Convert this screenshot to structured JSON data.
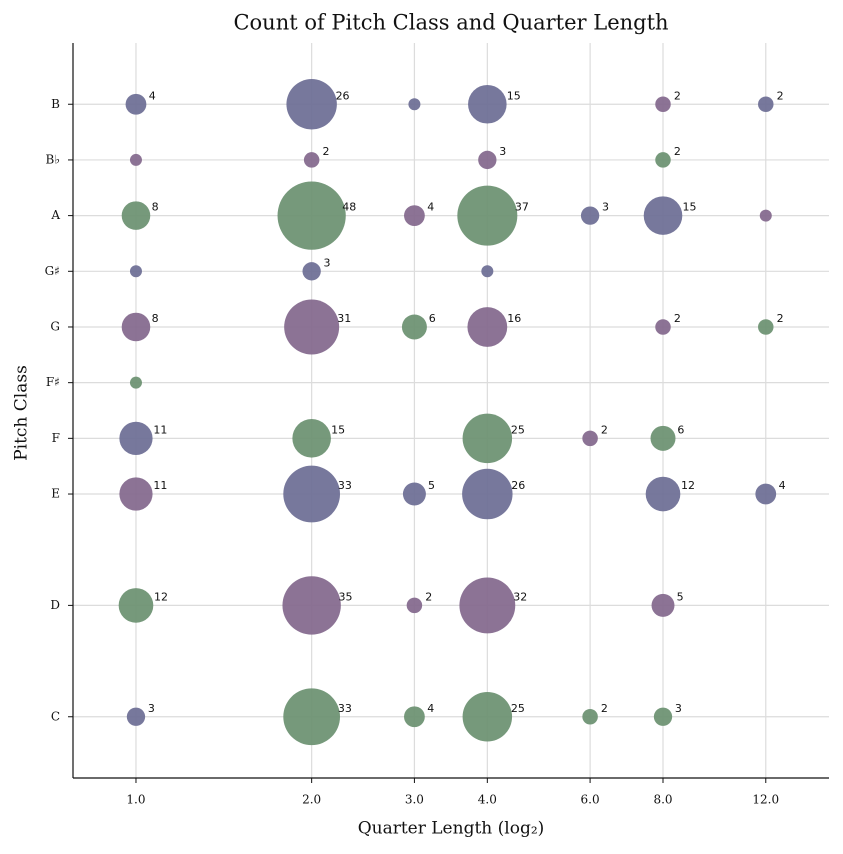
{
  "chart_data": {
    "type": "scatter",
    "title": "Count of Pitch Class and Quarter Length",
    "xlabel": "Quarter Length (log₂)",
    "ylabel": "Pitch Class",
    "log_x": true,
    "grid": true,
    "xlim": [
      0.78,
      15.4
    ],
    "ylim": [
      -1.1,
      12.1
    ],
    "xticks": [
      {
        "value": 1,
        "label": "1.0"
      },
      {
        "value": 2,
        "label": "2.0"
      },
      {
        "value": 3,
        "label": "3.0"
      },
      {
        "value": 4,
        "label": "4.0"
      },
      {
        "value": 6,
        "label": "6.0"
      },
      {
        "value": 8,
        "label": "8.0"
      },
      {
        "value": 12,
        "label": "12.0"
      }
    ],
    "yticks": [
      {
        "value": 0,
        "label": "C"
      },
      {
        "value": 2,
        "label": "D"
      },
      {
        "value": 4,
        "label": "E"
      },
      {
        "value": 5,
        "label": "F"
      },
      {
        "value": 6,
        "label": "F♯"
      },
      {
        "value": 7,
        "label": "G"
      },
      {
        "value": 8,
        "label": "G♯"
      },
      {
        "value": 9,
        "label": "A"
      },
      {
        "value": 10,
        "label": "B♭"
      },
      {
        "value": 11,
        "label": "B"
      }
    ],
    "x": [
      1,
      2,
      3,
      4,
      8,
      12,
      1,
      2,
      4,
      8,
      1,
      2,
      3,
      4,
      6,
      8,
      12,
      1,
      2,
      4,
      1,
      2,
      3,
      4,
      8,
      12,
      1,
      1,
      2,
      4,
      6,
      8,
      1,
      2,
      3,
      4,
      8,
      12,
      1,
      2,
      3,
      4,
      8,
      1,
      2,
      3,
      4,
      6,
      8
    ],
    "y": [
      11,
      11,
      11,
      11,
      11,
      11,
      10,
      10,
      10,
      10,
      9,
      9,
      9,
      9,
      9,
      9,
      9,
      8,
      8,
      8,
      7,
      7,
      7,
      7,
      7,
      7,
      6,
      5,
      5,
      5,
      5,
      5,
      4,
      4,
      4,
      4,
      4,
      4,
      2,
      2,
      2,
      2,
      2,
      0,
      0,
      0,
      0,
      0,
      0
    ],
    "sizes": [
      4,
      26,
      1,
      15,
      2,
      2,
      1,
      2,
      3,
      2,
      8,
      48,
      4,
      37,
      3,
      15,
      1,
      1,
      3,
      1,
      8,
      31,
      6,
      16,
      2,
      2,
      1,
      11,
      15,
      25,
      2,
      6,
      11,
      33,
      5,
      26,
      12,
      4,
      12,
      35,
      2,
      32,
      5,
      3,
      33,
      4,
      25,
      2,
      3
    ],
    "colors": [
      "#6b6d94",
      "#6b6d94",
      "#6b6d94",
      "#6b6d94",
      "#82678c",
      "#6b6d94",
      "#82678c",
      "#82678c",
      "#82678c",
      "#6a9070",
      "#6a9070",
      "#6a9070",
      "#82678c",
      "#6a9070",
      "#6b6d94",
      "#6b6d94",
      "#82678c",
      "#6b6d94",
      "#6b6d94",
      "#6b6d94",
      "#82678c",
      "#82678c",
      "#6a9070",
      "#82678c",
      "#82678c",
      "#6a9070",
      "#6a9070",
      "#6b6d94",
      "#6a9070",
      "#6a9070",
      "#82678c",
      "#6a9070",
      "#82678c",
      "#6b6d94",
      "#6b6d94",
      "#6b6d94",
      "#6b6d94",
      "#6b6d94",
      "#6a9070",
      "#82678c",
      "#82678c",
      "#82678c",
      "#82678c",
      "#6b6d94",
      "#6a9070",
      "#6a9070",
      "#6a9070",
      "#6a9070",
      "#6a9070"
    ]
  }
}
